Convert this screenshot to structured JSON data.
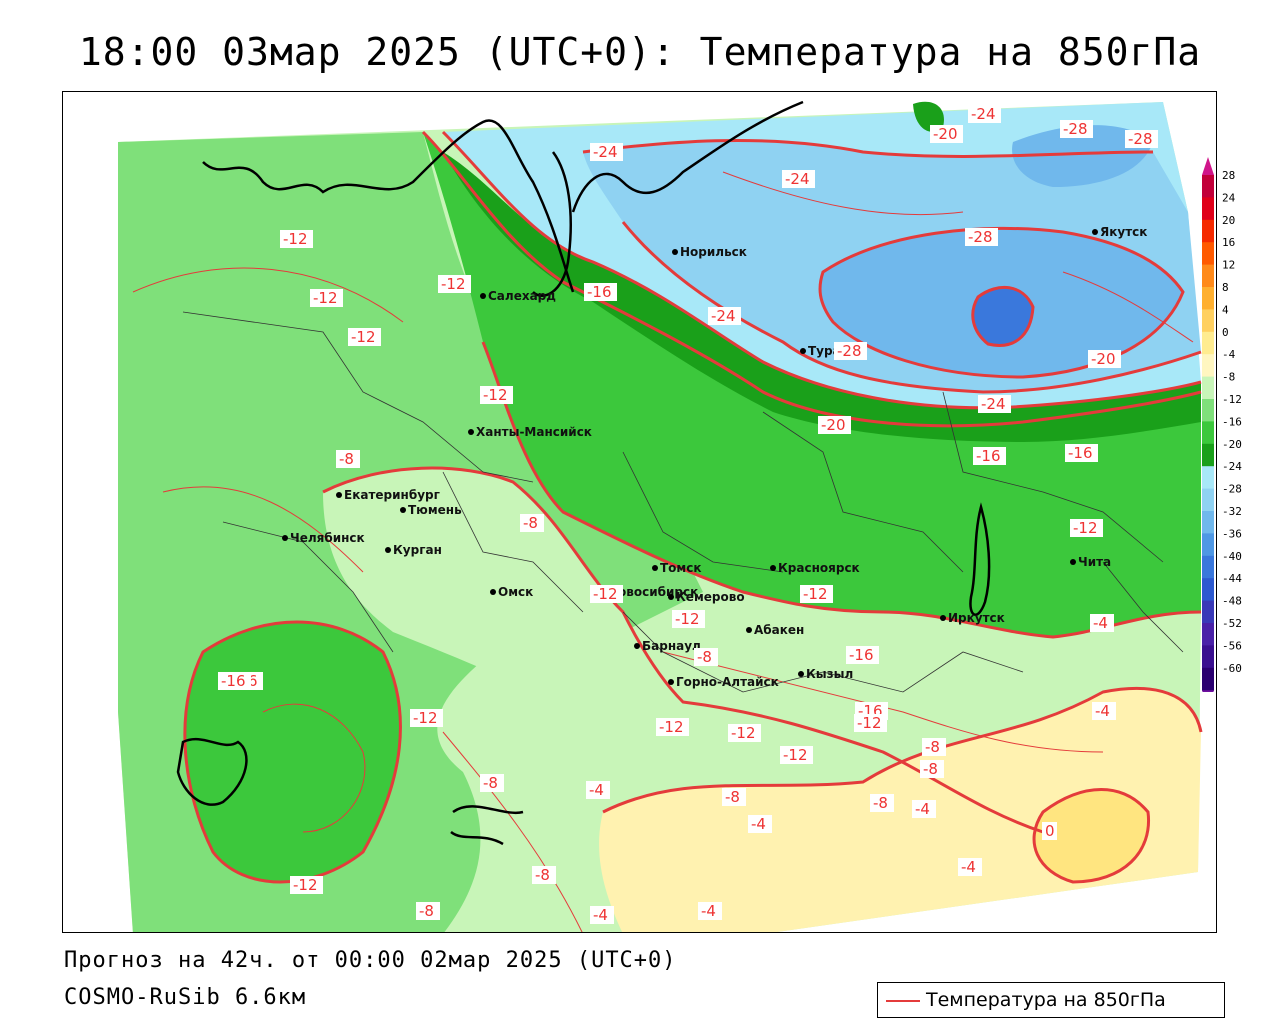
{
  "title": "18:00 03мар 2025 (UTC+0): Температура на 850гПа",
  "footer": {
    "forecast": "Прогноз на 42ч. от 00:00 02мар 2025 (UTC+0)",
    "model": "COSMO-RuSib 6.6км"
  },
  "legend": {
    "label": "Температура на 850гПа",
    "line_color": "#e43b3b"
  },
  "colorbar": {
    "levels": [
      "28",
      "24",
      "20",
      "16",
      "12",
      "8",
      "4",
      "0",
      "-4",
      "-8",
      "-12",
      "-16",
      "-20",
      "-24",
      "-28",
      "-32",
      "-36",
      "-40",
      "-44",
      "-48",
      "-52",
      "-56",
      "-60"
    ],
    "colors": [
      "#c2003a",
      "#e0001a",
      "#f52a00",
      "#ff5a00",
      "#ff8a1a",
      "#ffb030",
      "#ffd060",
      "#ffec90",
      "#fff6c0",
      "#c8f5b8",
      "#7fe07a",
      "#3cc83c",
      "#1aa01a",
      "#a8e8f8",
      "#8fd2f2",
      "#70b8ec",
      "#4f98e4",
      "#3a78dc",
      "#2d5ad0",
      "#3a3ab8",
      "#4a22a8",
      "#3a1090",
      "#2a0070"
    ],
    "top_arrow_color": "#d0158a",
    "bottom_arrow_color": "#7010a0"
  },
  "cities": [
    {
      "name": "Норильск"
    },
    {
      "name": "Якутск"
    },
    {
      "name": "Тура"
    },
    {
      "name": "Салехард"
    },
    {
      "name": "Ханты-Мансийск"
    },
    {
      "name": "Екатеринбург"
    },
    {
      "name": "Тюмень"
    },
    {
      "name": "Челябинск"
    },
    {
      "name": "Курган"
    },
    {
      "name": "Омск"
    },
    {
      "name": "Новосибирск"
    },
    {
      "name": "Томск"
    },
    {
      "name": "Красноярск"
    },
    {
      "name": "Кемерово"
    },
    {
      "name": "Абакен"
    },
    {
      "name": "Барнаул"
    },
    {
      "name": "Горно-Алтайск"
    },
    {
      "name": "Кызыл"
    },
    {
      "name": "Иркутск"
    },
    {
      "name": "Чита"
    }
  ],
  "isotherm_labels": [
    "-24",
    "-20",
    "-28",
    "-28",
    "-24",
    "-24",
    "-28",
    "-28",
    "-20",
    "-24",
    "-12",
    "-12",
    "-12",
    "-12",
    "-16",
    "-24",
    "-12",
    "-20",
    "-16",
    "-16",
    "-8",
    "-8",
    "-12",
    "-12",
    "-16",
    "-12",
    "-12",
    "-16",
    "-8",
    "-12",
    "-4",
    "-16",
    "-12",
    "-12",
    "-4",
    "-16",
    "-12",
    "-12",
    "-8",
    "-8",
    "-8",
    "-8",
    "-8",
    "-4",
    "-4",
    "-4",
    "0",
    "-4",
    "-12",
    "-8",
    "-8",
    "-4",
    "-4"
  ]
}
